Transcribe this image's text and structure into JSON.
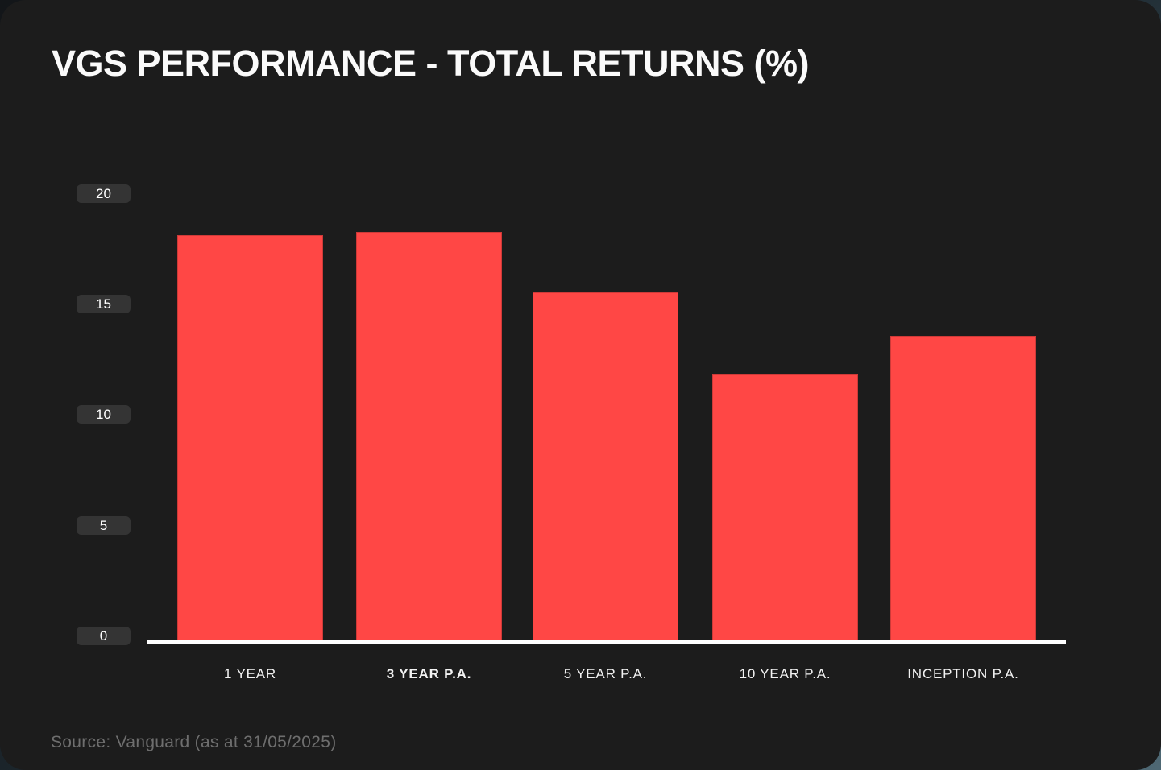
{
  "title": "VGS PERFORMANCE - TOTAL RETURNS (%)",
  "source": "Source: Vanguard (as at 31/05/2025)",
  "colors": {
    "page_backdrop": "#4e6874",
    "card_bg": "#1c1c1c",
    "bar": "#ff4745",
    "axis_line": "#ffffff",
    "tick_badge_bg": "#343434",
    "tick_text": "#ffffff",
    "label_text": "#f2f2f2",
    "source_text": "#6e6e6e"
  },
  "chart_data": {
    "type": "bar",
    "title": "VGS PERFORMANCE - TOTAL RETURNS (%)",
    "categories": [
      "1 YEAR",
      "3 YEAR P.A.",
      "5 YEAR P.A.",
      "10 YEAR P.A.",
      "INCEPTION P.A."
    ],
    "values": [
      18.11,
      18.26,
      15.53,
      11.85,
      13.56
    ],
    "emphasized_category": "3 YEAR P.A.",
    "yticks": [
      20,
      15,
      10,
      5,
      0
    ],
    "ylim": [
      0,
      20
    ],
    "xlabel": "",
    "ylabel": "",
    "grid": false,
    "legend": "none",
    "bar_color": "#ff4745"
  }
}
